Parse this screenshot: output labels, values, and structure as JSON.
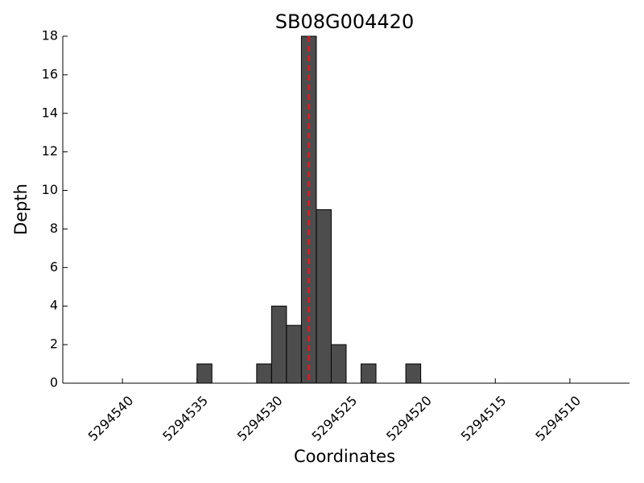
{
  "chart_data": {
    "type": "bar",
    "title": "SB08G004420",
    "xlabel": "Coordinates",
    "ylabel": "Depth",
    "x": [
      5294535,
      5294531,
      5294530,
      5294529,
      5294528,
      5294527,
      5294526,
      5294524,
      5294521
    ],
    "values": [
      1,
      1,
      4,
      3,
      18,
      9,
      2,
      1,
      1
    ],
    "color": "#4d4d4d",
    "xlim": [
      5294544,
      5294506
    ],
    "xticks": [
      5294540,
      5294535,
      5294530,
      5294525,
      5294520,
      5294515,
      5294510
    ],
    "ylim": [
      0,
      18
    ],
    "yticks": [
      0,
      2,
      4,
      6,
      8,
      10,
      12,
      14,
      16,
      18
    ],
    "marker_x": 5294527.5,
    "marker_color": "#e8141c"
  }
}
